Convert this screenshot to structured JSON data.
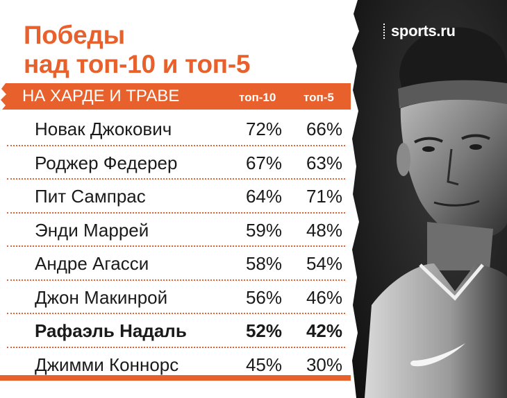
{
  "brand": {
    "name": "sports.ru"
  },
  "title": {
    "line1": "Победы",
    "line2": "над топ-10 и топ-5"
  },
  "header": {
    "label": "НА ХАРДЕ И ТРАВЕ",
    "col1": "топ-10",
    "col2": "топ-5"
  },
  "rows": [
    {
      "name": "Новак Джокович",
      "top10": "72%",
      "top5": "66%",
      "highlight": false
    },
    {
      "name": "Роджер Федерер",
      "top10": "67%",
      "top5": "63%",
      "highlight": false
    },
    {
      "name": "Пит Сампрас",
      "top10": "64%",
      "top5": "71%",
      "highlight": false
    },
    {
      "name": "Энди Маррей",
      "top10": "59%",
      "top5": "48%",
      "highlight": false
    },
    {
      "name": "Андре Агасси",
      "top10": "58%",
      "top5": "54%",
      "highlight": false
    },
    {
      "name": "Джон Макинрой",
      "top10": "56%",
      "top5": "46%",
      "highlight": false
    },
    {
      "name": "Рафаэль Надаль",
      "top10": "52%",
      "top5": "42%",
      "highlight": true
    },
    {
      "name": "Джимми Коннорс",
      "top10": "45%",
      "top5": "30%",
      "highlight": false
    }
  ],
  "colors": {
    "accent": "#e8612c",
    "text": "#1a1a1a",
    "panel": "#1c1c1c"
  }
}
